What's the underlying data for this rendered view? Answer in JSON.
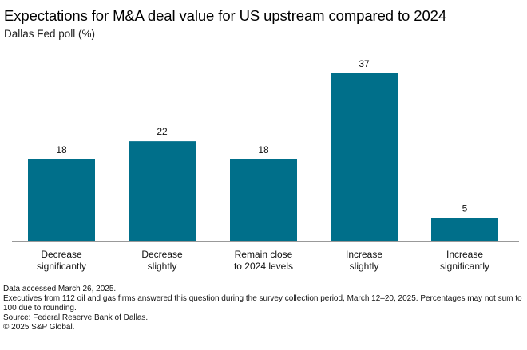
{
  "header": {
    "title": "Expectations for M&A deal value for US upstream compared to 2024",
    "subtitle": "Dallas Fed poll (%)"
  },
  "chart_data": {
    "type": "bar",
    "categories": [
      [
        "Decrease",
        "significantly"
      ],
      [
        "Decrease",
        "slightly"
      ],
      [
        "Remain close",
        "to 2024 levels"
      ],
      [
        "Increase",
        "slightly"
      ],
      [
        "Increase",
        "significantly"
      ]
    ],
    "values": [
      18,
      22,
      18,
      37,
      5
    ],
    "xlabel": "",
    "ylabel": "",
    "ylim": [
      0,
      40
    ],
    "grid": false,
    "bar_color": "#006f8a"
  },
  "footer": {
    "accessed": "Data accessed March 26, 2025.",
    "note": "Executives from 112 oil and gas firms answered this question during the survey collection period, March 12–20, 2025. Percentages may not sum to 100 due to rounding.",
    "source": "Source: Federal Reserve Bank of Dallas.",
    "copyright": "© 2025 S&P Global."
  }
}
